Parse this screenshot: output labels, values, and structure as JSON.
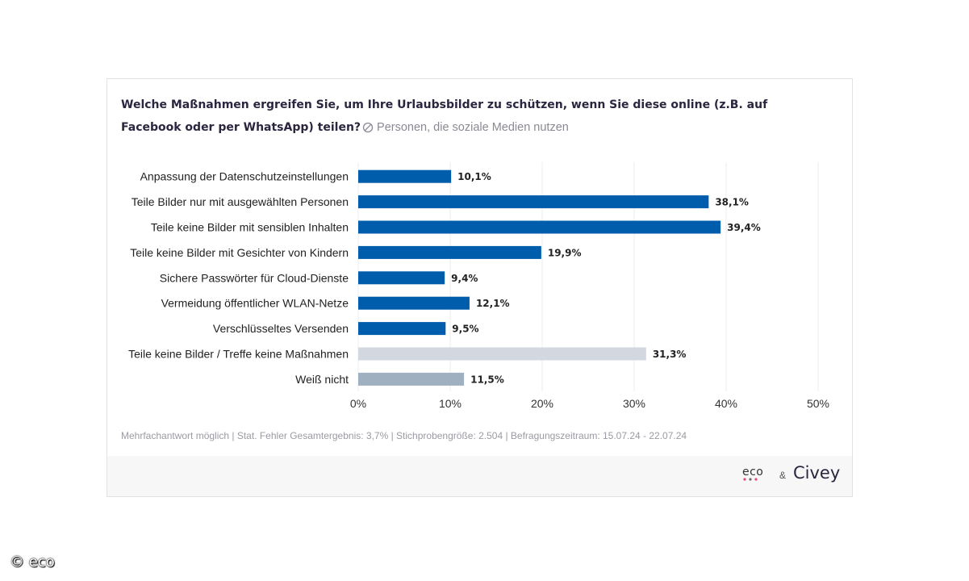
{
  "chart_data": {
    "type": "bar",
    "orientation": "horizontal",
    "title": "Welche Maßnahmen ergreifen Sie, um Ihre Urlaubsbilder zu schützen, wenn Sie diese online (z.B. auf Facebook oder per WhatsApp) teilen?",
    "subtitle": "Personen, die soziale Medien nutzen",
    "categories": [
      "Anpassung der Datenschutzeinstellungen",
      "Teile Bilder nur mit ausgewählten Personen",
      "Teile keine Bilder mit sensiblen Inhalten",
      "Teile keine Bilder mit Gesichter von Kindern",
      "Sichere Passwörter für Cloud-Dienste",
      "Vermeidung öffentlicher WLAN-Netze",
      "Verschlüsseltes Versenden",
      "Teile keine Bilder / Treffe keine Maßnahmen",
      "Weiß nicht"
    ],
    "values": [
      10.1,
      38.1,
      39.4,
      19.9,
      9.4,
      12.1,
      9.5,
      31.3,
      11.5
    ],
    "value_labels": [
      "10,1%",
      "38,1%",
      "39,4%",
      "19,9%",
      "9,4%",
      "12,1%",
      "9,5%",
      "31,3%",
      "11,5%"
    ],
    "bar_colors": [
      "#005dac",
      "#005dac",
      "#005dac",
      "#005dac",
      "#005dac",
      "#005dac",
      "#005dac",
      "#d3d7e0",
      "#9fb1c0"
    ],
    "xlim": [
      0,
      50
    ],
    "xticks": [
      0,
      10,
      20,
      30,
      40,
      50
    ],
    "xtick_labels": [
      "0%",
      "10%",
      "20%",
      "30%",
      "40%",
      "50%"
    ],
    "grid": true,
    "xlabel": "",
    "ylabel": ""
  },
  "footnote": "Mehrfachantwort möglich | Stat. Fehler Gesamtergebnis: 3,7% | Stichprobengröße: 2.504 | Befragungszeitraum: 15.07.24 - 22.07.24",
  "logos": {
    "eco": "eco",
    "amp": "&",
    "civey": "Civey"
  },
  "copyright": "© eco",
  "icons": {
    "filter": "filter-icon"
  }
}
